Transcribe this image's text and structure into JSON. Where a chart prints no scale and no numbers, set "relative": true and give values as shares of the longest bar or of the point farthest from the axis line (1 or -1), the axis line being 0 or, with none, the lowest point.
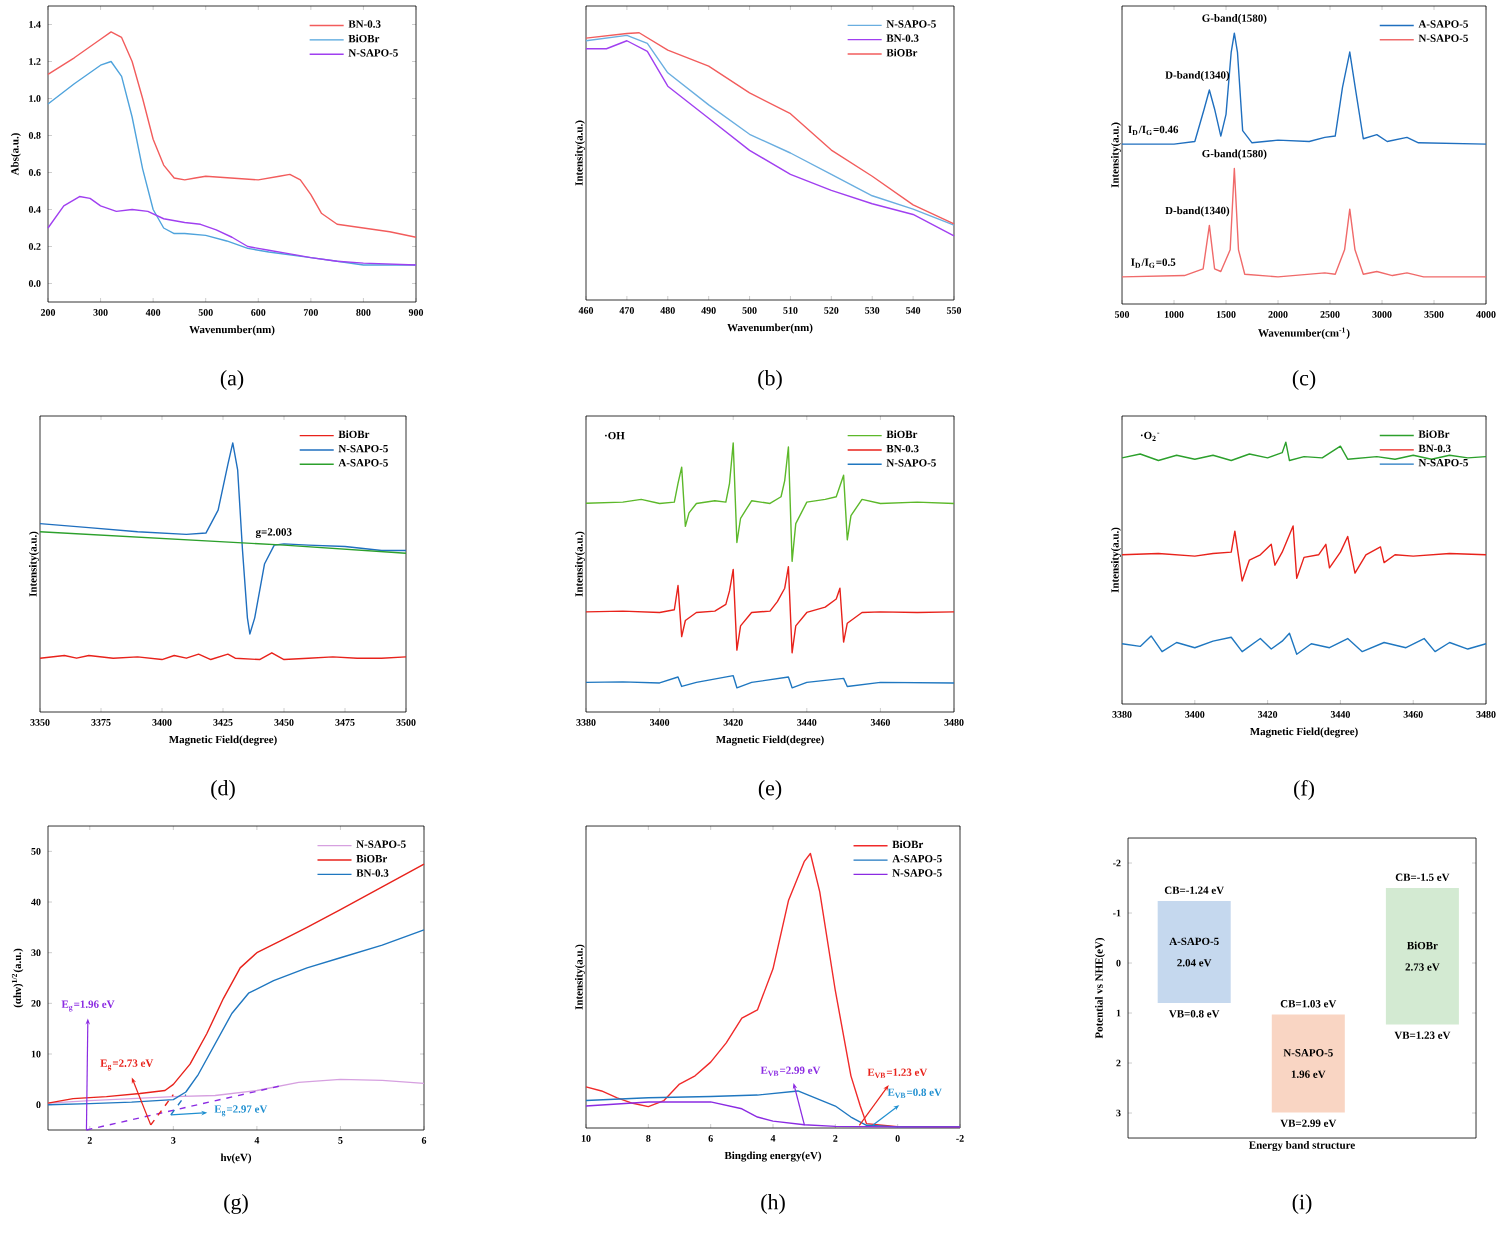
{
  "chart_data": [
    {
      "type": "line",
      "title": "(a)",
      "xlabel": "Wavenumber(nm)",
      "ylabel": "Abs(a.u.)",
      "xlim": [
        200,
        900
      ],
      "xticks": [
        200,
        300,
        400,
        500,
        600,
        700,
        800,
        900
      ],
      "ylim": [
        -0.1,
        1.5
      ],
      "yticks": [
        {
          "value": 0,
          "label": "0.0"
        },
        0.2,
        0.4,
        0.6,
        0.8,
        {
          "value": 1,
          "label": "1.0"
        },
        1.2,
        1.4
      ],
      "legend": "top right",
      "series": [
        {
          "name": "BN-0.3",
          "color": "#f25c5c",
          "x": [
            200,
            250,
            300,
            320,
            340,
            360,
            380,
            400,
            420,
            440,
            460,
            480,
            500,
            550,
            600,
            640,
            660,
            680,
            700,
            720,
            750,
            800,
            850,
            900
          ],
          "values": [
            1.13,
            1.22,
            1.32,
            1.36,
            1.33,
            1.2,
            1.0,
            0.78,
            0.64,
            0.57,
            0.56,
            0.57,
            0.58,
            0.57,
            0.56,
            0.58,
            0.59,
            0.56,
            0.48,
            0.38,
            0.32,
            0.3,
            0.28,
            0.25
          ]
        },
        {
          "name": "BiOBr",
          "color": "#4fa3dc",
          "x": [
            200,
            250,
            300,
            320,
            340,
            360,
            380,
            400,
            420,
            440,
            460,
            500,
            540,
            580,
            620,
            700,
            750,
            800,
            900
          ],
          "values": [
            0.97,
            1.08,
            1.18,
            1.2,
            1.12,
            0.9,
            0.62,
            0.4,
            0.3,
            0.27,
            0.27,
            0.26,
            0.23,
            0.19,
            0.17,
            0.14,
            0.12,
            0.1,
            0.1
          ]
        },
        {
          "name": "N-SAPO-5",
          "color": "#a03ff0",
          "x": [
            200,
            230,
            260,
            280,
            300,
            330,
            360,
            390,
            420,
            460,
            490,
            520,
            550,
            580,
            620,
            660,
            700,
            750,
            800,
            900
          ],
          "values": [
            0.3,
            0.42,
            0.47,
            0.46,
            0.42,
            0.39,
            0.4,
            0.39,
            0.35,
            0.33,
            0.32,
            0.29,
            0.25,
            0.2,
            0.18,
            0.16,
            0.14,
            0.12,
            0.11,
            0.1
          ]
        }
      ]
    },
    {
      "type": "line",
      "title": "(b)",
      "xlabel": "Wavenumber(nm)",
      "ylabel": "Intensity(a.u.)",
      "relative": true,
      "xlim": [
        460,
        550
      ],
      "xticks": [
        460,
        470,
        480,
        490,
        500,
        510,
        520,
        530,
        540,
        550
      ],
      "legend": "top right",
      "series": [
        {
          "name": "N-SAPO-5",
          "color": "#6aaee0",
          "x": [
            460,
            470,
            475,
            480,
            490,
            500,
            510,
            520,
            530,
            540,
            550
          ],
          "values": [
            0.97,
            0.99,
            0.96,
            0.85,
            0.73,
            0.62,
            0.55,
            0.47,
            0.39,
            0.34,
            0.28
          ]
        },
        {
          "name": "BN-0.3",
          "color": "#a03ff0",
          "x": [
            460,
            465,
            470,
            475,
            480,
            490,
            500,
            510,
            520,
            530,
            540,
            550
          ],
          "values": [
            0.94,
            0.94,
            0.97,
            0.93,
            0.8,
            0.68,
            0.56,
            0.47,
            0.41,
            0.36,
            0.32,
            0.24
          ]
        },
        {
          "name": "BiOBr",
          "color": "#f25c5c",
          "x": [
            460,
            470,
            473,
            480,
            490,
            500,
            510,
            520,
            530,
            540,
            550
          ],
          "values": [
            0.98,
            0.997,
            1.0,
            0.935,
            0.875,
            0.775,
            0.697,
            0.561,
            0.463,
            0.356,
            0.285
          ]
        }
      ]
    },
    {
      "type": "line",
      "title": "(c)",
      "xlabel": "Wavenumber(cm$^{-1}$)",
      "ylabel": "Intensity(a.u.)",
      "relative": true,
      "xlim": [
        500,
        4000
      ],
      "xticks": [
        500,
        1000,
        1500,
        2000,
        2500,
        3000,
        3500,
        4000
      ],
      "legend": "top right",
      "annotations": [
        {
          "text": "G-band(1580)",
          "x": 1580,
          "y": 1.0
        },
        {
          "text": "D-band(1340)",
          "x": 1340,
          "y": 0.79
        },
        {
          "text": "I$_{D}$/I$_{G}$=0.46",
          "x": 800,
          "y": 0.59
        },
        {
          "text": "G-band(1580)",
          "x": 1580,
          "y": 0.5
        },
        {
          "text": "D-band(1340)",
          "x": 1340,
          "y": 0.29
        },
        {
          "text": "I$_{D}$/I$_{G}$=0.5",
          "x": 800,
          "y": 0.1
        }
      ],
      "series": [
        {
          "name": "A-SAPO-5",
          "color": "#1f6fbf",
          "x": [
            500,
            1000,
            1200,
            1290,
            1340,
            1390,
            1450,
            1500,
            1550,
            1580,
            1610,
            1660,
            1750,
            2000,
            2300,
            2450,
            2550,
            2620,
            2690,
            2750,
            2820,
            2950,
            3050,
            3240,
            3350,
            4000
          ],
          "values": [
            0.59,
            0.59,
            0.6,
            0.72,
            0.79,
            0.72,
            0.62,
            0.7,
            0.93,
            1.0,
            0.93,
            0.64,
            0.595,
            0.605,
            0.6,
            0.615,
            0.62,
            0.8,
            0.93,
            0.78,
            0.61,
            0.625,
            0.6,
            0.615,
            0.595,
            0.59
          ]
        },
        {
          "name": "N-SAPO-5",
          "color": "#f06a6a",
          "x": [
            500,
            1100,
            1280,
            1340,
            1390,
            1450,
            1540,
            1580,
            1620,
            1680,
            2000,
            2450,
            2550,
            2640,
            2690,
            2740,
            2820,
            2950,
            3100,
            3240,
            3400,
            4000
          ],
          "values": [
            0.1,
            0.105,
            0.13,
            0.29,
            0.13,
            0.12,
            0.2,
            0.5,
            0.2,
            0.11,
            0.1,
            0.115,
            0.11,
            0.2,
            0.35,
            0.2,
            0.11,
            0.12,
            0.105,
            0.115,
            0.1,
            0.1
          ]
        }
      ]
    },
    {
      "type": "line",
      "title": "(d)",
      "xlabel": "Magnetic Field(degree)",
      "ylabel": "Intensity(a.u.)",
      "relative": true,
      "xlim": [
        3350,
        3500
      ],
      "xticks": [
        3350,
        3375,
        3400,
        3425,
        3450,
        3475,
        3500
      ],
      "legend": "top right",
      "annotations": [
        {
          "text": "g=2.003",
          "x": 3433,
          "y": 0.65
        }
      ],
      "series": [
        {
          "name": "BiOBr",
          "color": "#e8221b",
          "x": [
            3350,
            3360,
            3365,
            3370,
            3380,
            3390,
            3400,
            3405,
            3410,
            3415,
            3420,
            3427,
            3430,
            3440,
            3445,
            3450,
            3460,
            3470,
            3480,
            3490,
            3500
          ],
          "values": [
            0.2,
            0.21,
            0.2,
            0.21,
            0.2,
            0.205,
            0.195,
            0.21,
            0.2,
            0.215,
            0.195,
            0.215,
            0.2,
            0.195,
            0.22,
            0.195,
            0.2,
            0.205,
            0.2,
            0.2,
            0.205
          ]
        },
        {
          "name": "N-SAPO-5",
          "color": "#1f6fbf",
          "x": [
            3350,
            3370,
            3390,
            3410,
            3418,
            3423,
            3427,
            3429,
            3431,
            3433,
            3435,
            3436,
            3438,
            3442,
            3446,
            3450,
            3460,
            3475,
            3490,
            3500
          ],
          "values": [
            0.7,
            0.685,
            0.67,
            0.66,
            0.665,
            0.75,
            0.92,
            1.0,
            0.9,
            0.6,
            0.35,
            0.29,
            0.35,
            0.55,
            0.62,
            0.625,
            0.62,
            0.615,
            0.6,
            0.6
          ]
        },
        {
          "name": "A-SAPO-5",
          "color": "#2ca02c",
          "x": [
            3350,
            3400,
            3450,
            3500
          ],
          "values": [
            0.67,
            0.645,
            0.62,
            0.59
          ]
        }
      ]
    },
    {
      "type": "line",
      "title": "(e)",
      "xlabel": "Magnetic Field(degree)",
      "ylabel": "Intensity(a.u.)",
      "relative": true,
      "xlim": [
        3380,
        3480
      ],
      "xticks": [
        3380,
        3400,
        3420,
        3440,
        3460,
        3480
      ],
      "legend": "top right",
      "annotations": [
        "·OH"
      ],
      "series": [
        {
          "name": "BiOBr",
          "color": "#5cb82a",
          "x": [
            3380,
            3390,
            3395,
            3400,
            3404,
            3405,
            3406,
            3407,
            3408,
            3410,
            3415,
            3418,
            3419,
            3420,
            3421,
            3422,
            3425,
            3430,
            3433,
            3434,
            3435,
            3436,
            3437,
            3440,
            3445,
            3448,
            3449,
            3450,
            3451,
            3452,
            3455,
            3460,
            3470,
            3480
          ],
          "values": [
            0.776,
            0.78,
            0.79,
            0.775,
            0.78,
            0.85,
            0.91,
            0.69,
            0.74,
            0.775,
            0.785,
            0.78,
            0.85,
            1.0,
            0.63,
            0.72,
            0.785,
            0.775,
            0.8,
            0.86,
            0.985,
            0.56,
            0.7,
            0.78,
            0.79,
            0.8,
            0.84,
            0.88,
            0.64,
            0.73,
            0.79,
            0.775,
            0.78,
            0.775
          ]
        },
        {
          "name": "BN-0.3",
          "color": "#e8221b",
          "x": [
            3380,
            3390,
            3400,
            3404,
            3405,
            3406,
            3407,
            3410,
            3415,
            3418,
            3419,
            3420,
            3421,
            3422,
            3425,
            3430,
            3432,
            3434,
            3435,
            3436,
            3437,
            3440,
            3445,
            3448,
            3449,
            3450,
            3451,
            3455,
            3460,
            3470,
            3480
          ],
          "values": [
            0.372,
            0.375,
            0.37,
            0.38,
            0.47,
            0.28,
            0.34,
            0.37,
            0.375,
            0.4,
            0.45,
            0.53,
            0.23,
            0.32,
            0.37,
            0.375,
            0.41,
            0.46,
            0.54,
            0.22,
            0.32,
            0.37,
            0.39,
            0.42,
            0.46,
            0.26,
            0.33,
            0.37,
            0.372,
            0.37,
            0.372
          ]
        },
        {
          "name": "N-SAPO-5",
          "color": "#1f77c0",
          "x": [
            3380,
            3390,
            3400,
            3405,
            3406,
            3410,
            3420,
            3421,
            3425,
            3435,
            3436,
            3440,
            3450,
            3451,
            3460,
            3480
          ],
          "values": [
            0.11,
            0.112,
            0.108,
            0.13,
            0.095,
            0.11,
            0.135,
            0.09,
            0.11,
            0.13,
            0.09,
            0.11,
            0.125,
            0.095,
            0.11,
            0.108
          ]
        }
      ]
    },
    {
      "type": "line",
      "title": "(f)",
      "xlabel": "Magnetic Field(degree)",
      "ylabel": "Intensity(a.u.)",
      "relative": true,
      "xlim": [
        3380,
        3480
      ],
      "xticks": [
        3380,
        3400,
        3420,
        3440,
        3460,
        3480
      ],
      "legend": "top right",
      "annotations": [
        "·O$_{2}$$^{-}$"
      ],
      "series": [
        {
          "name": "BiOBr",
          "color": "#2ca02c",
          "x": [
            3380,
            3385,
            3390,
            3395,
            3400,
            3405,
            3410,
            3415,
            3420,
            3424,
            3425,
            3426,
            3430,
            3435,
            3440,
            3442,
            3450,
            3455,
            3460,
            3465,
            3470,
            3475,
            3480
          ],
          "values": [
            0.94,
            0.955,
            0.93,
            0.95,
            0.935,
            0.95,
            0.93,
            0.955,
            0.94,
            0.96,
            1.0,
            0.93,
            0.945,
            0.94,
            0.985,
            0.935,
            0.945,
            0.935,
            0.95,
            0.935,
            0.95,
            0.94,
            0.945
          ]
        },
        {
          "name": "BN-0.3",
          "color": "#e8221b",
          "x": [
            3380,
            3390,
            3400,
            3405,
            3410,
            3411,
            3413,
            3415,
            3418,
            3421,
            3422,
            3424,
            3427,
            3428,
            3430,
            3434,
            3436,
            3437,
            3440,
            3442,
            3444,
            3447,
            3451,
            3452,
            3455,
            3460,
            3470,
            3480
          ],
          "values": [
            0.57,
            0.575,
            0.565,
            0.575,
            0.58,
            0.66,
            0.47,
            0.55,
            0.57,
            0.61,
            0.53,
            0.58,
            0.68,
            0.48,
            0.56,
            0.57,
            0.61,
            0.52,
            0.58,
            0.64,
            0.5,
            0.57,
            0.6,
            0.54,
            0.57,
            0.565,
            0.575,
            0.57
          ]
        },
        {
          "name": "N-SAPO-5",
          "color": "#1f77c0",
          "x": [
            3380,
            3385,
            3388,
            3391,
            3395,
            3400,
            3405,
            3410,
            3413,
            3418,
            3421,
            3424,
            3426,
            3428,
            3432,
            3437,
            3442,
            3446,
            3452,
            3458,
            3463,
            3466,
            3470,
            3475,
            3480
          ],
          "values": [
            0.23,
            0.22,
            0.26,
            0.2,
            0.235,
            0.215,
            0.24,
            0.255,
            0.2,
            0.25,
            0.21,
            0.24,
            0.27,
            0.19,
            0.23,
            0.215,
            0.25,
            0.2,
            0.235,
            0.215,
            0.25,
            0.2,
            0.235,
            0.21,
            0.23
          ]
        }
      ]
    },
    {
      "type": "line",
      "title": "(g)",
      "xlabel": "hν(eV)",
      "ylabel": "(αhν)$^{1/2}$(a.u.)",
      "xlim": [
        1.5,
        6
      ],
      "xticks": [
        2,
        3,
        4,
        5,
        6
      ],
      "ylim": [
        -5,
        55
      ],
      "yticks": [
        0,
        10,
        20,
        30,
        40,
        50
      ],
      "legend": "top right",
      "annotations": [
        {
          "text": "E$_{g}$=1.96 eV",
          "x": 1.96,
          "y": -5
        },
        {
          "text": "E$_{g}$=2.73 eV",
          "x": 2.73,
          "y": -4
        },
        {
          "text": "E$_{g}$=2.97 eV",
          "x": 2.97,
          "y": -2
        }
      ],
      "series": [
        {
          "name": "N-SAPO-5",
          "color": "#d6a0e0",
          "x": [
            1.5,
            2.0,
            2.5,
            3.0,
            3.5,
            4.0,
            4.5,
            5.0,
            5.5,
            6.0
          ],
          "values": [
            0.3,
            0.8,
            1.2,
            1.6,
            1.8,
            2.8,
            4.4,
            5,
            4.8,
            4.2
          ]
        },
        {
          "name": "BiOBr",
          "color": "#e8221b",
          "x": [
            1.5,
            1.8,
            2.2,
            2.6,
            2.9,
            3.0,
            3.2,
            3.4,
            3.6,
            3.8,
            4.0,
            4.3,
            4.6,
            5.0,
            5.5,
            6.0
          ],
          "values": [
            0.3,
            1.2,
            1.6,
            2.2,
            2.8,
            4,
            8,
            14,
            21,
            27,
            30,
            32.5,
            35,
            38.5,
            43,
            47.5
          ]
        },
        {
          "name": "BN-0.3",
          "color": "#1f77c0",
          "x": [
            1.5,
            2.0,
            2.5,
            3.0,
            3.15,
            3.3,
            3.5,
            3.7,
            3.9,
            4.2,
            4.6,
            5.0,
            5.5,
            6.0
          ],
          "values": [
            0,
            0.2,
            0.5,
            1,
            2.5,
            6,
            12,
            18,
            22,
            24.5,
            27,
            29,
            31.5,
            34.5
          ]
        },
        {
          "color": "#8b2be2",
          "line_style": "dashed",
          "x": [
            1.96,
            4.28
          ],
          "values": [
            -5,
            3.7
          ]
        },
        {
          "color": "#e8221b",
          "line_style": "dashed",
          "x": [
            2.73,
            3.0
          ],
          "values": [
            -4,
            2
          ]
        },
        {
          "color": "#1f77c0",
          "line_style": "dashed",
          "x": [
            2.97,
            3.15
          ],
          "values": [
            -2,
            2
          ]
        }
      ]
    },
    {
      "type": "line",
      "title": "(h)",
      "xlabel": "Bingding energy(eV)",
      "ylabel": "Intensity(a.u.)",
      "relative": true,
      "xlim": [
        10,
        -2
      ],
      "xticks": [
        10,
        8,
        6,
        4,
        2,
        0,
        -2
      ],
      "legend": "top right",
      "annotations": [
        {
          "text": "E$_{VB}$=2.99 eV",
          "x": 2.99,
          "y": 0.01
        },
        {
          "text": "E$_{VB}$=1.23 eV",
          "x": 1.23,
          "y": 0.01
        },
        {
          "text": "E$_{VB}$=0.8 eV",
          "x": 0.8,
          "y": 0.01
        }
      ],
      "series": [
        {
          "name": "BiOBr",
          "color": "#f02a2a",
          "x": [
            10,
            9.5,
            9,
            8.5,
            8,
            7.5,
            7,
            6.5,
            6,
            5.5,
            5,
            4.5,
            4,
            3.5,
            3,
            2.8,
            2.5,
            2,
            1.5,
            1.2,
            1.0,
            0.5,
            0,
            -2
          ],
          "values": [
            0.15,
            0.135,
            0.11,
            0.09,
            0.078,
            0.1,
            0.16,
            0.19,
            0.24,
            0.31,
            0.4,
            0.43,
            0.58,
            0.83,
            0.97,
            1.0,
            0.86,
            0.5,
            0.19,
            0.08,
            0.016,
            0.01,
            0.005,
            0.003
          ]
        },
        {
          "name": "A-SAPO-5",
          "color": "#1f77c0",
          "x": [
            10,
            8,
            6,
            4.5,
            3.2,
            2,
            1.5,
            1,
            0,
            -2
          ],
          "values": [
            0.1,
            0.11,
            0.115,
            0.12,
            0.135,
            0.08,
            0.04,
            0.01,
            0.004,
            0.004
          ]
        },
        {
          "name": "N-SAPO-5",
          "color": "#8b2be2",
          "x": [
            10,
            8,
            6,
            5,
            4.5,
            4,
            3,
            2,
            0,
            -2
          ],
          "values": [
            0.08,
            0.095,
            0.095,
            0.07,
            0.04,
            0.025,
            0.012,
            0.006,
            0.004,
            0.004
          ]
        }
      ]
    },
    {
      "type": "bar",
      "title": "(i)",
      "xlabel": "Energy band structure",
      "ylabel": "Potential vs NHE(eV)",
      "categories": [
        null,
        null,
        null
      ],
      "base": [
        -1.24,
        1.03,
        -1.5
      ],
      "values": [
        2.04,
        1.96,
        2.73
      ],
      "colors": [
        "#c5d8ee",
        "#f9d5c3",
        "#d3ead2"
      ],
      "ylim": [
        3.5,
        -2.5
      ],
      "yticks": [
        -2,
        -1,
        0,
        1,
        2,
        3
      ],
      "annotations": [
        {
          "text": "CB=-1.24 eV",
          "y": -1.24
        },
        "A-SAPO-5",
        "2.04 eV",
        {
          "text": "VB=0.8 eV",
          "y": 0.8
        },
        {
          "text": "CB=1.03 eV",
          "y": 1.03
        },
        "N-SAPO-5",
        "1.96 eV",
        {
          "text": "VB=2.99 eV",
          "y": 2.99
        },
        {
          "text": "CB=-1.5 eV",
          "y": -1.5
        },
        "BiOBr",
        "2.73 eV",
        {
          "text": "VB=1.23 eV",
          "y": 1.23
        }
      ]
    }
  ]
}
